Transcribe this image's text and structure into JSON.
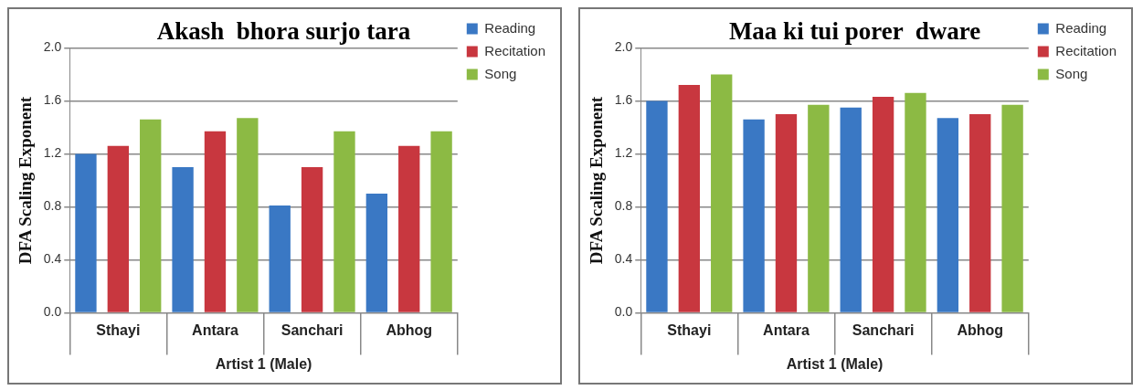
{
  "chart_data": [
    {
      "type": "bar",
      "title": "Akash  bhora surjo tara",
      "xlabel": "Artist 1 (Male)",
      "ylabel": "DFA Scaling Exponent",
      "categories": [
        "Sthayi",
        "Antara",
        "Sanchari",
        "Abhog"
      ],
      "series": [
        {
          "name": "Reading",
          "color": "#3a78c4",
          "values": [
            1.2,
            1.1,
            0.81,
            0.9
          ]
        },
        {
          "name": "Recitation",
          "color": "#c8373f",
          "values": [
            1.26,
            1.37,
            1.1,
            1.26
          ]
        },
        {
          "name": "Song",
          "color": "#8cba44",
          "values": [
            1.46,
            1.47,
            1.37,
            1.37
          ]
        }
      ],
      "ylim": [
        0,
        2
      ],
      "yticks": [
        {
          "value": 0,
          "label": "0.0"
        },
        {
          "value": 0.4,
          "label": "0.4"
        },
        {
          "value": 0.8,
          "label": "0.8"
        },
        {
          "value": 1.2,
          "label": "1.2"
        },
        {
          "value": 1.6,
          "label": "1.6"
        },
        {
          "value": 2,
          "label": "2.0"
        }
      ],
      "grid": "y",
      "legend": "top right"
    },
    {
      "type": "bar",
      "title": "Maa ki tui porer  dware",
      "xlabel": "Artist 1 (Male)",
      "ylabel": "DFA Scaling Exponent",
      "categories": [
        "Sthayi",
        "Antara",
        "Sanchari",
        "Abhog"
      ],
      "series": [
        {
          "name": "Reading",
          "color": "#3a78c4",
          "values": [
            1.6,
            1.46,
            1.55,
            1.47
          ]
        },
        {
          "name": "Recitation",
          "color": "#c8373f",
          "values": [
            1.72,
            1.5,
            1.63,
            1.5
          ]
        },
        {
          "name": "Song",
          "color": "#8cba44",
          "values": [
            1.8,
            1.57,
            1.66,
            1.57
          ]
        }
      ],
      "ylim": [
        0,
        2
      ],
      "yticks": [
        {
          "value": 0,
          "label": "0.0"
        },
        {
          "value": 0.4,
          "label": "0.4"
        },
        {
          "value": 0.8,
          "label": "0.8"
        },
        {
          "value": 1.2,
          "label": "1.2"
        },
        {
          "value": 1.6,
          "label": "1.6"
        },
        {
          "value": 2,
          "label": "2.0"
        }
      ],
      "grid": "y",
      "legend": "top right"
    }
  ]
}
